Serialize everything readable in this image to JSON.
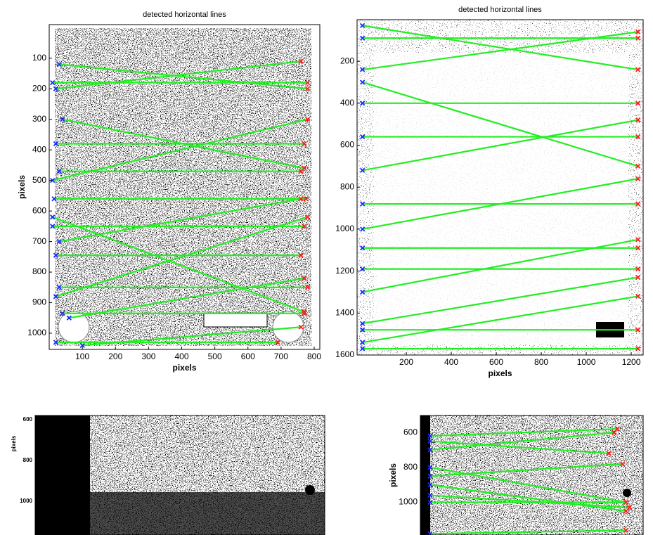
{
  "chart_data": [
    {
      "type": "image",
      "title": "detected horizontal lines",
      "xlabel": "pixels",
      "ylabel": "pixels",
      "xlim": [
        0,
        817
      ],
      "ylim": [
        1053,
        -10
      ],
      "xticks": [
        100,
        200,
        300,
        400,
        500,
        600,
        700,
        800
      ],
      "yticks": [
        100,
        200,
        300,
        400,
        500,
        600,
        700,
        800,
        900,
        1000
      ],
      "segments": [
        {
          "x": [
            30,
            780
          ],
          "y": [
            120,
            200
          ]
        },
        {
          "x": [
            20,
            760
          ],
          "y": [
            200,
            110
          ]
        },
        {
          "x": [
            10,
            780
          ],
          "y": [
            180,
            180
          ]
        },
        {
          "x": [
            40,
            770
          ],
          "y": [
            300,
            460
          ]
        },
        {
          "x": [
            10,
            780
          ],
          "y": [
            500,
            300
          ]
        },
        {
          "x": [
            20,
            770
          ],
          "y": [
            380,
            380
          ]
        },
        {
          "x": [
            30,
            760
          ],
          "y": [
            470,
            470
          ]
        },
        {
          "x": [
            15,
            775
          ],
          "y": [
            560,
            560
          ]
        },
        {
          "x": [
            30,
            760
          ],
          "y": [
            700,
            560
          ]
        },
        {
          "x": [
            10,
            770
          ],
          "y": [
            650,
            650
          ]
        },
        {
          "x": [
            20,
            780
          ],
          "y": [
            880,
            620
          ]
        },
        {
          "x": [
            20,
            760
          ],
          "y": [
            745,
            745
          ]
        },
        {
          "x": [
            10,
            770
          ],
          "y": [
            620,
            930
          ]
        },
        {
          "x": [
            60,
            770
          ],
          "y": [
            950,
            820
          ]
        },
        {
          "x": [
            30,
            780
          ],
          "y": [
            850,
            850
          ]
        },
        {
          "x": [
            40,
            770
          ],
          "y": [
            935,
            935
          ]
        },
        {
          "x": [
            100,
            760
          ],
          "y": [
            1040,
            980
          ]
        },
        {
          "x": [
            20,
            690
          ],
          "y": [
            1030,
            1030
          ]
        }
      ]
    },
    {
      "type": "image",
      "title": "detected horizontal lines",
      "xlabel": "pixels",
      "xlim": [
        -19,
        1253
      ],
      "ylim": [
        1600,
        2
      ],
      "xticks": [
        200,
        400,
        600,
        800,
        1000,
        1200
      ],
      "yticks": [
        200,
        400,
        600,
        800,
        1000,
        1200,
        1400,
        1600
      ],
      "segments": [
        {
          "x": [
            5,
            1230
          ],
          "y": [
            90,
            90
          ]
        },
        {
          "x": [
            5,
            1230
          ],
          "y": [
            30,
            240
          ]
        },
        {
          "x": [
            5,
            1230
          ],
          "y": [
            240,
            60
          ]
        },
        {
          "x": [
            5,
            1230
          ],
          "y": [
            400,
            400
          ]
        },
        {
          "x": [
            5,
            1230
          ],
          "y": [
            300,
            700
          ]
        },
        {
          "x": [
            5,
            1230
          ],
          "y": [
            560,
            560
          ]
        },
        {
          "x": [
            5,
            1230
          ],
          "y": [
            720,
            480
          ]
        },
        {
          "x": [
            5,
            1230
          ],
          "y": [
            880,
            880
          ]
        },
        {
          "x": [
            5,
            1230
          ],
          "y": [
            1000,
            760
          ]
        },
        {
          "x": [
            5,
            1230
          ],
          "y": [
            1090,
            1090
          ]
        },
        {
          "x": [
            5,
            1230
          ],
          "y": [
            1190,
            1190
          ]
        },
        {
          "x": [
            5,
            1230
          ],
          "y": [
            1300,
            1050
          ]
        },
        {
          "x": [
            5,
            1230
          ],
          "y": [
            1480,
            1480
          ]
        },
        {
          "x": [
            5,
            1230
          ],
          "y": [
            1570,
            1570
          ]
        },
        {
          "x": [
            5,
            1230
          ],
          "y": [
            1450,
            1230
          ]
        },
        {
          "x": [
            5,
            1230
          ],
          "y": [
            1540,
            1320
          ]
        }
      ]
    },
    {
      "type": "image",
      "ylabel": "pixels",
      "ylim": [
        1166,
        579
      ],
      "yticks": [
        600,
        800,
        1000
      ]
    },
    {
      "type": "image",
      "ylabel": "pixels",
      "xlim": [
        0,
        1300
      ],
      "ylim": [
        1187,
        503
      ],
      "yticks": [
        600,
        800,
        1000
      ],
      "segments": [
        {
          "x": [
            57,
            1150
          ],
          "y": [
            620,
            580
          ]
        },
        {
          "x": [
            57,
            1100
          ],
          "y": [
            650,
            720
          ]
        },
        {
          "x": [
            57,
            1130
          ],
          "y": [
            700,
            600
          ]
        },
        {
          "x": [
            57,
            1180
          ],
          "y": [
            850,
            780
          ]
        },
        {
          "x": [
            57,
            1200
          ],
          "y": [
            800,
            1000
          ]
        },
        {
          "x": [
            57,
            1200
          ],
          "y": [
            900,
            1050
          ]
        },
        {
          "x": [
            57,
            1220
          ],
          "y": [
            960,
            1030
          ]
        },
        {
          "x": [
            57,
            1200
          ],
          "y": [
            1000,
            1000
          ]
        },
        {
          "x": [
            57,
            1200
          ],
          "y": [
            1180,
            1160
          ]
        }
      ]
    }
  ]
}
